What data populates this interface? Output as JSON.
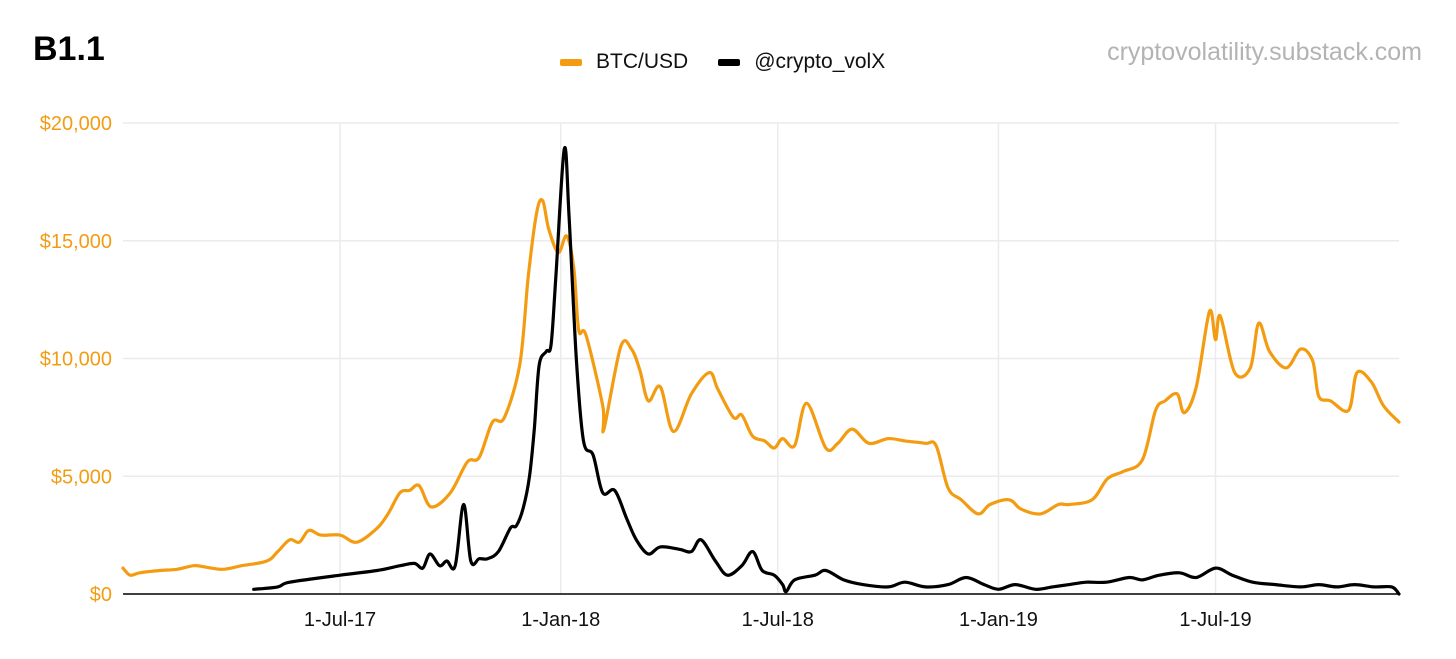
{
  "chart_id": "B1.1",
  "watermark": "cryptovolatility.substack.com",
  "colors": {
    "btc": "#f39c12",
    "vol": "#000000",
    "grid": "#ebebeb",
    "axis": "#000000"
  },
  "chart_data": {
    "type": "line",
    "title": "",
    "xlabel": "",
    "ylabel": "",
    "ylim": [
      0,
      20000
    ],
    "xlim": [
      "2017-01-01",
      "2019-12-01"
    ],
    "grid": true,
    "legend_position": "top",
    "y_ticks": [
      {
        "value": 0,
        "label": "$0"
      },
      {
        "value": 5000,
        "label": "$5,000"
      },
      {
        "value": 10000,
        "label": "$10,000"
      },
      {
        "value": 15000,
        "label": "$15,000"
      },
      {
        "value": 20000,
        "label": "$20,000"
      }
    ],
    "x_ticks": [
      {
        "value": "2017-07-01",
        "label": "1-Jul-17"
      },
      {
        "value": "2018-01-01",
        "label": "1-Jan-18"
      },
      {
        "value": "2018-07-01",
        "label": "1-Jul-18"
      },
      {
        "value": "2019-01-01",
        "label": "1-Jan-19"
      },
      {
        "value": "2019-07-01",
        "label": "1-Jul-19"
      }
    ],
    "series": [
      {
        "name": "BTC/USD",
        "color": "#f39c12",
        "points": [
          [
            "2017-01-01",
            1100
          ],
          [
            "2017-01-07",
            800
          ],
          [
            "2017-01-15",
            900
          ],
          [
            "2017-02-01",
            1000
          ],
          [
            "2017-02-15",
            1050
          ],
          [
            "2017-03-01",
            1200
          ],
          [
            "2017-03-10",
            1150
          ],
          [
            "2017-03-25",
            1050
          ],
          [
            "2017-04-10",
            1200
          ],
          [
            "2017-05-01",
            1400
          ],
          [
            "2017-05-10",
            1800
          ],
          [
            "2017-05-20",
            2300
          ],
          [
            "2017-05-28",
            2200
          ],
          [
            "2017-06-05",
            2700
          ],
          [
            "2017-06-15",
            2500
          ],
          [
            "2017-07-01",
            2500
          ],
          [
            "2017-07-15",
            2200
          ],
          [
            "2017-08-01",
            2800
          ],
          [
            "2017-08-10",
            3400
          ],
          [
            "2017-08-20",
            4300
          ],
          [
            "2017-08-28",
            4400
          ],
          [
            "2017-09-05",
            4600
          ],
          [
            "2017-09-15",
            3700
          ],
          [
            "2017-10-01",
            4300
          ],
          [
            "2017-10-15",
            5600
          ],
          [
            "2017-10-25",
            5800
          ],
          [
            "2017-11-05",
            7300
          ],
          [
            "2017-11-15",
            7500
          ],
          [
            "2017-11-28",
            9800
          ],
          [
            "2017-12-05",
            13500
          ],
          [
            "2017-12-12",
            16200
          ],
          [
            "2017-12-17",
            16700
          ],
          [
            "2017-12-22",
            15500
          ],
          [
            "2017-12-30",
            14500
          ],
          [
            "2018-01-06",
            15200
          ],
          [
            "2018-01-12",
            13800
          ],
          [
            "2018-01-16",
            11200
          ],
          [
            "2018-01-22",
            11000
          ],
          [
            "2018-02-05",
            8000
          ],
          [
            "2018-02-06",
            7000
          ],
          [
            "2018-02-20",
            10500
          ],
          [
            "2018-03-01",
            10400
          ],
          [
            "2018-03-08",
            9500
          ],
          [
            "2018-03-15",
            8200
          ],
          [
            "2018-03-25",
            8800
          ],
          [
            "2018-04-05",
            6900
          ],
          [
            "2018-04-20",
            8500
          ],
          [
            "2018-05-05",
            9400
          ],
          [
            "2018-05-12",
            8700
          ],
          [
            "2018-05-25",
            7500
          ],
          [
            "2018-06-01",
            7600
          ],
          [
            "2018-06-10",
            6700
          ],
          [
            "2018-06-20",
            6500
          ],
          [
            "2018-06-28",
            6200
          ],
          [
            "2018-07-05",
            6600
          ],
          [
            "2018-07-15",
            6300
          ],
          [
            "2018-07-25",
            8100
          ],
          [
            "2018-08-10",
            6200
          ],
          [
            "2018-08-20",
            6400
          ],
          [
            "2018-09-01",
            7000
          ],
          [
            "2018-09-15",
            6400
          ],
          [
            "2018-10-01",
            6600
          ],
          [
            "2018-10-15",
            6500
          ],
          [
            "2018-11-01",
            6400
          ],
          [
            "2018-11-10",
            6300
          ],
          [
            "2018-11-20",
            4500
          ],
          [
            "2018-12-01",
            4000
          ],
          [
            "2018-12-15",
            3400
          ],
          [
            "2018-12-25",
            3800
          ],
          [
            "2019-01-10",
            4000
          ],
          [
            "2019-01-20",
            3600
          ],
          [
            "2019-02-05",
            3400
          ],
          [
            "2019-02-20",
            3800
          ],
          [
            "2019-03-01",
            3800
          ],
          [
            "2019-03-20",
            4000
          ],
          [
            "2019-04-02",
            4900
          ],
          [
            "2019-04-15",
            5200
          ],
          [
            "2019-05-01",
            5700
          ],
          [
            "2019-05-12",
            7800
          ],
          [
            "2019-05-20",
            8200
          ],
          [
            "2019-05-30",
            8500
          ],
          [
            "2019-06-05",
            7700
          ],
          [
            "2019-06-15",
            8800
          ],
          [
            "2019-06-26",
            12000
          ],
          [
            "2019-07-01",
            10800
          ],
          [
            "2019-07-05",
            11800
          ],
          [
            "2019-07-17",
            9400
          ],
          [
            "2019-07-30",
            9600
          ],
          [
            "2019-08-06",
            11500
          ],
          [
            "2019-08-15",
            10300
          ],
          [
            "2019-08-29",
            9600
          ],
          [
            "2019-09-10",
            10400
          ],
          [
            "2019-09-20",
            9900
          ],
          [
            "2019-09-25",
            8400
          ],
          [
            "2019-10-05",
            8200
          ],
          [
            "2019-10-20",
            7800
          ],
          [
            "2019-10-27",
            9400
          ],
          [
            "2019-11-08",
            9000
          ],
          [
            "2019-11-18",
            8000
          ],
          [
            "2019-12-01",
            7300
          ]
        ]
      },
      {
        "name": "@crypto_volX",
        "color": "#000000",
        "points": [
          [
            "2017-04-20",
            200
          ],
          [
            "2017-05-10",
            300
          ],
          [
            "2017-05-20",
            500
          ],
          [
            "2017-07-01",
            800
          ],
          [
            "2017-08-01",
            1000
          ],
          [
            "2017-08-20",
            1200
          ],
          [
            "2017-09-01",
            1300
          ],
          [
            "2017-09-08",
            1100
          ],
          [
            "2017-09-14",
            1700
          ],
          [
            "2017-09-22",
            1200
          ],
          [
            "2017-09-28",
            1400
          ],
          [
            "2017-10-05",
            1200
          ],
          [
            "2017-10-12",
            3800
          ],
          [
            "2017-10-18",
            1400
          ],
          [
            "2017-10-25",
            1500
          ],
          [
            "2017-11-01",
            1500
          ],
          [
            "2017-11-10",
            1800
          ],
          [
            "2017-11-20",
            2800
          ],
          [
            "2017-11-25",
            2900
          ],
          [
            "2017-12-01",
            3700
          ],
          [
            "2017-12-06",
            5000
          ],
          [
            "2017-12-10",
            7000
          ],
          [
            "2017-12-14",
            9700
          ],
          [
            "2017-12-20",
            10300
          ],
          [
            "2017-12-24",
            10600
          ],
          [
            "2017-12-28",
            13500
          ],
          [
            "2018-01-04",
            18900
          ],
          [
            "2018-01-08",
            16000
          ],
          [
            "2018-01-14",
            10000
          ],
          [
            "2018-01-20",
            6500
          ],
          [
            "2018-01-28",
            5900
          ],
          [
            "2018-02-05",
            4300
          ],
          [
            "2018-02-15",
            4400
          ],
          [
            "2018-02-25",
            3200
          ],
          [
            "2018-03-05",
            2300
          ],
          [
            "2018-03-15",
            1700
          ],
          [
            "2018-03-25",
            2000
          ],
          [
            "2018-04-10",
            1900
          ],
          [
            "2018-04-20",
            1800
          ],
          [
            "2018-04-28",
            2300
          ],
          [
            "2018-05-10",
            1400
          ],
          [
            "2018-05-20",
            800
          ],
          [
            "2018-06-01",
            1200
          ],
          [
            "2018-06-10",
            1800
          ],
          [
            "2018-06-18",
            1000
          ],
          [
            "2018-06-28",
            800
          ],
          [
            "2018-07-05",
            400
          ],
          [
            "2018-07-08",
            100
          ],
          [
            "2018-07-15",
            600
          ],
          [
            "2018-08-01",
            800
          ],
          [
            "2018-08-10",
            1000
          ],
          [
            "2018-08-25",
            600
          ],
          [
            "2018-09-10",
            400
          ],
          [
            "2018-10-01",
            300
          ],
          [
            "2018-10-15",
            500
          ],
          [
            "2018-11-01",
            300
          ],
          [
            "2018-11-20",
            400
          ],
          [
            "2018-12-05",
            700
          ],
          [
            "2018-12-20",
            400
          ],
          [
            "2019-01-01",
            200
          ],
          [
            "2019-01-15",
            400
          ],
          [
            "2019-02-01",
            200
          ],
          [
            "2019-02-15",
            300
          ],
          [
            "2019-03-01",
            400
          ],
          [
            "2019-03-15",
            500
          ],
          [
            "2019-04-01",
            500
          ],
          [
            "2019-04-20",
            700
          ],
          [
            "2019-05-01",
            600
          ],
          [
            "2019-05-15",
            800
          ],
          [
            "2019-06-01",
            900
          ],
          [
            "2019-06-15",
            700
          ],
          [
            "2019-07-01",
            1100
          ],
          [
            "2019-07-15",
            800
          ],
          [
            "2019-08-01",
            500
          ],
          [
            "2019-08-20",
            400
          ],
          [
            "2019-09-10",
            300
          ],
          [
            "2019-09-25",
            400
          ],
          [
            "2019-10-10",
            300
          ],
          [
            "2019-10-25",
            400
          ],
          [
            "2019-11-10",
            300
          ],
          [
            "2019-11-25",
            300
          ],
          [
            "2019-12-01",
            0
          ]
        ]
      }
    ]
  }
}
